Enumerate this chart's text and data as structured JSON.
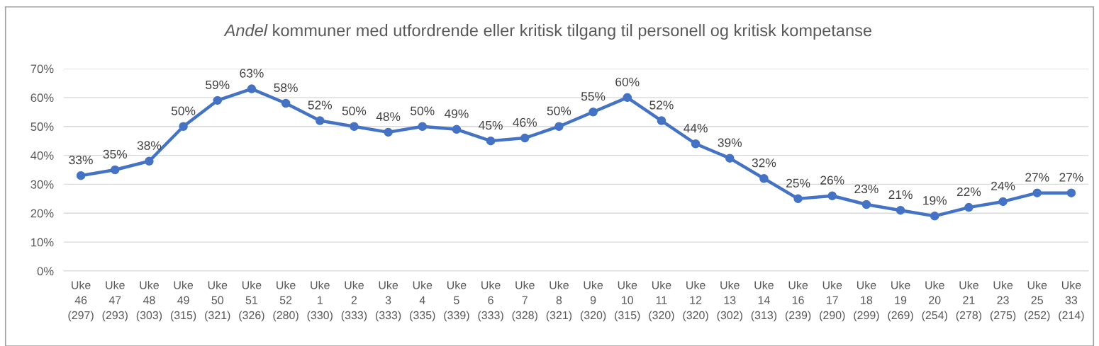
{
  "chart_data": {
    "type": "line",
    "title": "Andel kommuner med utfordrende eller kritisk tilgang til personell og kritisk kompetanse",
    "categories": [
      "Uke\n46\n(297)",
      "Uke\n47\n(293)",
      "Uke\n48\n(303)",
      "Uke\n49\n(315)",
      "Uke\n50\n(321)",
      "Uke\n51\n(326)",
      "Uke\n52\n(280)",
      "Uke\n1\n(330)",
      "Uke\n2\n(333)",
      "Uke\n3\n(333)",
      "Uke\n4\n(335)",
      "Uke\n5\n(339)",
      "Uke\n6\n(333)",
      "Uke\n7\n(328)",
      "Uke\n8\n(321)",
      "Uke\n9\n(320)",
      "Uke\n10\n(315)",
      "Uke\n11\n(320)",
      "Uke\n12\n(320)",
      "Uke\n13\n(302)",
      "Uke\n14\n(313)",
      "Uke\n16\n(239)",
      "Uke\n17\n(290)",
      "Uke\n18\n(299)",
      "Uke\n19\n(269)",
      "Uke\n20\n(254)",
      "Uke\n21\n(278)",
      "Uke\n23\n(275)",
      "Uke\n25\n(252)",
      "Uke\n33\n(214)"
    ],
    "series": [
      {
        "color": "#4472c4",
        "values": [
          33,
          35,
          38,
          50,
          59,
          63,
          58,
          52,
          50,
          48,
          50,
          49,
          45,
          46,
          50,
          55,
          60,
          52,
          44,
          39,
          32,
          25,
          26,
          23,
          21,
          19,
          22,
          24,
          27,
          27
        ],
        "value_labels": [
          "33%",
          "35%",
          "38%",
          "50%",
          "59%",
          "63%",
          "58%",
          "52%",
          "50%",
          "48%",
          "50%",
          "49%",
          "45%",
          "46%",
          "50%",
          "55%",
          "60%",
          "52%",
          "44%",
          "39%",
          "32%",
          "25%",
          "26%",
          "23%",
          "21%",
          "19%",
          "22%",
          "24%",
          "27%",
          "27%"
        ]
      }
    ],
    "ylim": [
      0,
      70
    ],
    "yticks": [
      {
        "value": 0,
        "label": "0%"
      },
      {
        "value": 10,
        "label": "10%"
      },
      {
        "value": 20,
        "label": "20%"
      },
      {
        "value": 30,
        "label": "30%"
      },
      {
        "value": 40,
        "label": "40%"
      },
      {
        "value": 50,
        "label": "50%"
      },
      {
        "value": 60,
        "label": "60%"
      },
      {
        "value": 70,
        "label": "70%"
      }
    ],
    "grid": "y",
    "marker": "circle",
    "line_style": "solid"
  }
}
